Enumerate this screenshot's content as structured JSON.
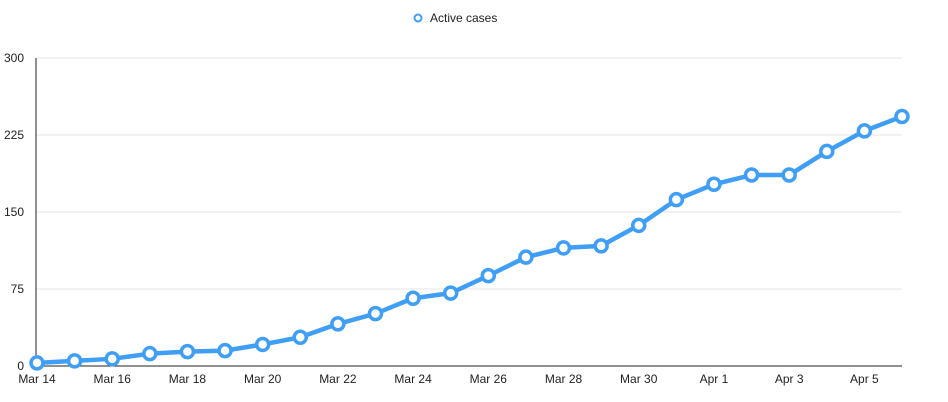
{
  "chart_data": {
    "type": "line",
    "x": [
      "Mar 14",
      "Mar 15",
      "Mar 16",
      "Mar 17",
      "Mar 18",
      "Mar 19",
      "Mar 20",
      "Mar 21",
      "Mar 22",
      "Mar 23",
      "Mar 24",
      "Mar 25",
      "Mar 26",
      "Mar 27",
      "Mar 28",
      "Mar 29",
      "Mar 30",
      "Mar 31",
      "Apr 1",
      "Apr 2",
      "Apr 3",
      "Apr 4",
      "Apr 5",
      "Apr 6"
    ],
    "x_tick_labels": [
      "Mar 14",
      "Mar 16",
      "Mar 18",
      "Mar 20",
      "Mar 22",
      "Mar 24",
      "Mar 26",
      "Mar 28",
      "Mar 30",
      "Apr 1",
      "Apr 3",
      "Apr 5"
    ],
    "series": [
      {
        "name": "Active cases",
        "color": "#3f9ef5",
        "values": [
          3,
          5,
          7,
          12,
          14,
          15,
          21,
          28,
          41,
          51,
          66,
          71,
          88,
          106,
          115,
          117,
          137,
          162,
          177,
          186,
          186,
          209,
          229,
          243
        ]
      }
    ],
    "y_ticks": [
      0,
      75,
      150,
      225,
      300
    ],
    "ylim": [
      0,
      300
    ],
    "grid": true,
    "legend_position": "top-center",
    "title": "",
    "xlabel": "",
    "ylabel": ""
  }
}
